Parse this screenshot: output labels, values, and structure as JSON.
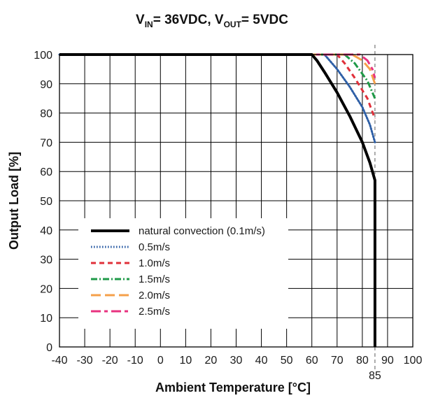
{
  "chart_data": {
    "type": "line",
    "title": {
      "v": "V",
      "in_sub": "IN",
      "mid": "= 36VDC, V",
      "out_sub": "OUT",
      "tail": "= 5VDC"
    },
    "xlabel": "Ambient Temperature [°C]",
    "ylabel": "Output Load [%]",
    "xlim": [
      -40,
      100
    ],
    "ylim": [
      0,
      100
    ],
    "x_ticks": [
      -40,
      -30,
      -20,
      -10,
      0,
      10,
      20,
      30,
      40,
      50,
      60,
      70,
      80,
      90,
      100
    ],
    "y_ticks": [
      0,
      10,
      20,
      30,
      40,
      50,
      60,
      70,
      80,
      90,
      100
    ],
    "x_tick_labels": [
      "-40",
      "-30",
      "-20",
      "-10",
      "0",
      "10",
      "20",
      "30",
      "40",
      "50",
      "60",
      "70",
      "80",
      "90",
      "100"
    ],
    "y_tick_labels": [
      "0",
      "10",
      "20",
      "30",
      "40",
      "50",
      "60",
      "70",
      "80",
      "90",
      "100"
    ],
    "grid": true,
    "legend_position": "bottom-left",
    "reference_line": {
      "x": 85,
      "label": "85",
      "style": "dashed",
      "color": "#777777"
    },
    "series": [
      {
        "name": "natural convection (0.1m/s)",
        "color": "#000000",
        "style": "solid",
        "points": [
          [
            -40,
            100
          ],
          [
            60,
            100
          ],
          [
            62,
            98
          ],
          [
            65,
            94
          ],
          [
            70,
            87
          ],
          [
            75,
            79
          ],
          [
            80,
            70
          ],
          [
            83,
            63
          ],
          [
            85,
            57
          ],
          [
            85,
            0
          ]
        ]
      },
      {
        "name": "0.5m/s",
        "color": "#2e5fa6",
        "style": "dotted",
        "points": [
          [
            -40,
            100
          ],
          [
            65,
            100
          ],
          [
            70,
            95
          ],
          [
            75,
            89
          ],
          [
            80,
            82
          ],
          [
            83,
            76
          ],
          [
            85,
            70
          ]
        ]
      },
      {
        "name": "1.0m/s",
        "color": "#e0303a",
        "style": "dashed",
        "points": [
          [
            -40,
            100
          ],
          [
            70,
            100
          ],
          [
            73,
            97
          ],
          [
            77,
            92
          ],
          [
            82,
            85
          ],
          [
            85,
            78
          ]
        ]
      },
      {
        "name": "1.5m/s",
        "color": "#1f9a48",
        "style": "dashdot",
        "points": [
          [
            -40,
            100
          ],
          [
            73,
            100
          ],
          [
            77,
            97
          ],
          [
            82,
            91
          ],
          [
            85,
            85
          ]
        ]
      },
      {
        "name": "2.0m/s",
        "color": "#f5a04a",
        "style": "longdash",
        "points": [
          [
            -40,
            100
          ],
          [
            76,
            100
          ],
          [
            80,
            98
          ],
          [
            83,
            95
          ],
          [
            85,
            90
          ]
        ]
      },
      {
        "name": "2.5m/s",
        "color": "#e8327f",
        "style": "dashdash",
        "points": [
          [
            -40,
            100
          ],
          [
            79,
            100
          ],
          [
            82,
            98
          ],
          [
            84,
            95
          ],
          [
            85,
            92
          ]
        ]
      }
    ]
  }
}
